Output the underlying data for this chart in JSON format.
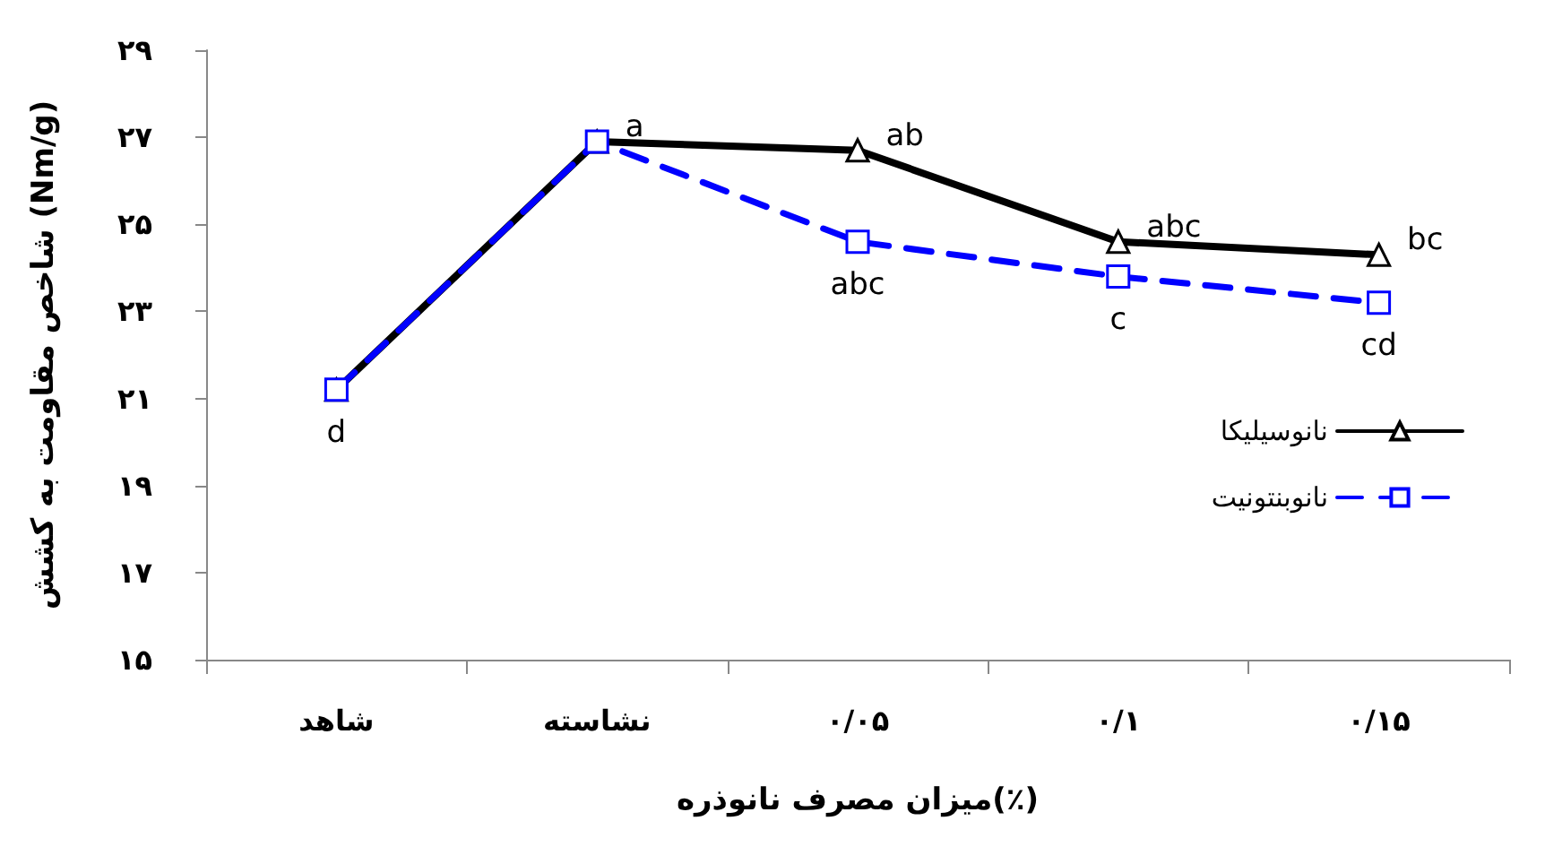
{
  "chart_data": {
    "type": "line",
    "xlabel": "میزان مصرف نانوذره(٪)",
    "ylabel": "شاخص مقاومت به کشش (Nm/g)",
    "categories": [
      "شاهد",
      "نشاسته",
      "۰/۰۵",
      "۰/۱",
      "۰/۱۵"
    ],
    "series": [
      {
        "name": "نانوسیلیکا",
        "color": "#000000",
        "marker": "triangle",
        "line_style": "solid",
        "values": [
          21.2,
          26.9,
          26.7,
          24.6,
          24.3
        ],
        "value_labels": [
          null,
          "a",
          "ab",
          "abc",
          "bc"
        ]
      },
      {
        "name": "نانوبنتونیت",
        "color": "#0000ff",
        "marker": "square",
        "line_style": "dashed",
        "values": [
          21.2,
          26.9,
          24.6,
          23.8,
          23.2
        ],
        "value_labels": [
          "d",
          null,
          "abc",
          "c",
          "cd"
        ]
      }
    ],
    "ylim": [
      15,
      29
    ],
    "yticks": [
      {
        "value": 15,
        "label": "۱۵"
      },
      {
        "value": 17,
        "label": "۱۷"
      },
      {
        "value": 19,
        "label": "۱۹"
      },
      {
        "value": 21,
        "label": "۲۱"
      },
      {
        "value": 23,
        "label": "۲۳"
      },
      {
        "value": 25,
        "label": "۲۵"
      },
      {
        "value": 27,
        "label": "۲۷"
      },
      {
        "value": 29,
        "label": "۲۹"
      }
    ],
    "grid": false,
    "legend": "right"
  }
}
